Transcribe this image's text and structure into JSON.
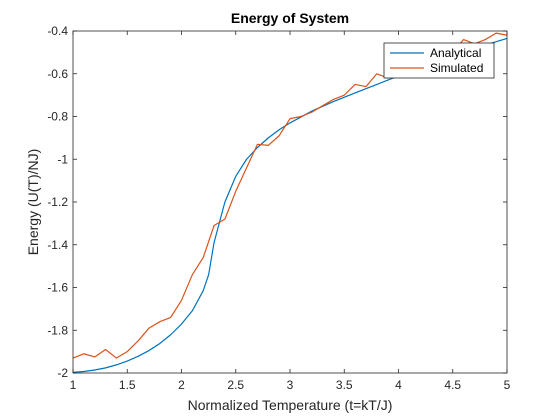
{
  "chart_data": {
    "type": "line",
    "title": "Energy of System",
    "xlabel": "Normalized Temperature (t=kT/J)",
    "ylabel": "Energy (U(T)/NJ)",
    "xlim": [
      1,
      5
    ],
    "ylim": [
      -2,
      -0.4
    ],
    "xticks": [
      1,
      1.5,
      2,
      2.5,
      3,
      3.5,
      4,
      4.5,
      5
    ],
    "xtick_labels": [
      "1",
      "1.5",
      "2",
      "2.5",
      "3",
      "3.5",
      "4",
      "4.5",
      "5"
    ],
    "yticks": [
      -2,
      -1.8,
      -1.6,
      -1.4,
      -1.2,
      -1,
      -0.8,
      -0.6,
      -0.4
    ],
    "ytick_labels": [
      "-2",
      "-1.8",
      "-1.6",
      "-1.4",
      "-1.2",
      "-1",
      "-0.8",
      "-0.6",
      "-0.4"
    ],
    "grid": false,
    "legend_position": "top-right",
    "series": [
      {
        "name": "Analytical",
        "color": "#0072BD",
        "x": [
          1.0,
          1.1,
          1.2,
          1.3,
          1.4,
          1.5,
          1.6,
          1.7,
          1.8,
          1.9,
          2.0,
          2.1,
          2.2,
          2.25,
          2.3,
          2.4,
          2.5,
          2.6,
          2.7,
          2.8,
          2.9,
          3.0,
          3.2,
          3.4,
          3.6,
          3.8,
          4.0,
          4.2,
          4.4,
          4.6,
          4.8,
          5.0
        ],
        "y": [
          -1.997,
          -1.993,
          -1.986,
          -1.976,
          -1.962,
          -1.944,
          -1.922,
          -1.895,
          -1.862,
          -1.821,
          -1.771,
          -1.709,
          -1.615,
          -1.54,
          -1.39,
          -1.2,
          -1.08,
          -1.0,
          -0.945,
          -0.9,
          -0.862,
          -0.83,
          -0.775,
          -0.73,
          -0.69,
          -0.65,
          -0.61,
          -0.57,
          -0.535,
          -0.5,
          -0.465,
          -0.435
        ]
      },
      {
        "name": "Simulated",
        "color": "#D95319",
        "x": [
          1.0,
          1.1,
          1.2,
          1.3,
          1.4,
          1.5,
          1.6,
          1.7,
          1.8,
          1.9,
          2.0,
          2.1,
          2.2,
          2.3,
          2.4,
          2.5,
          2.6,
          2.7,
          2.8,
          2.9,
          3.0,
          3.1,
          3.2,
          3.3,
          3.4,
          3.5,
          3.6,
          3.7,
          3.8,
          3.9,
          4.0,
          4.1,
          4.2,
          4.3,
          4.4,
          4.5,
          4.6,
          4.7,
          4.8,
          4.9,
          5.0
        ],
        "y": [
          -1.93,
          -1.91,
          -1.925,
          -1.89,
          -1.93,
          -1.9,
          -1.85,
          -1.79,
          -1.76,
          -1.74,
          -1.66,
          -1.54,
          -1.46,
          -1.31,
          -1.28,
          -1.15,
          -1.04,
          -0.93,
          -0.935,
          -0.89,
          -0.81,
          -0.8,
          -0.78,
          -0.75,
          -0.72,
          -0.7,
          -0.65,
          -0.66,
          -0.6,
          -0.62,
          -0.58,
          -0.6,
          -0.56,
          -0.55,
          -0.52,
          -0.5,
          -0.44,
          -0.46,
          -0.44,
          -0.41,
          -0.42
        ]
      }
    ]
  }
}
